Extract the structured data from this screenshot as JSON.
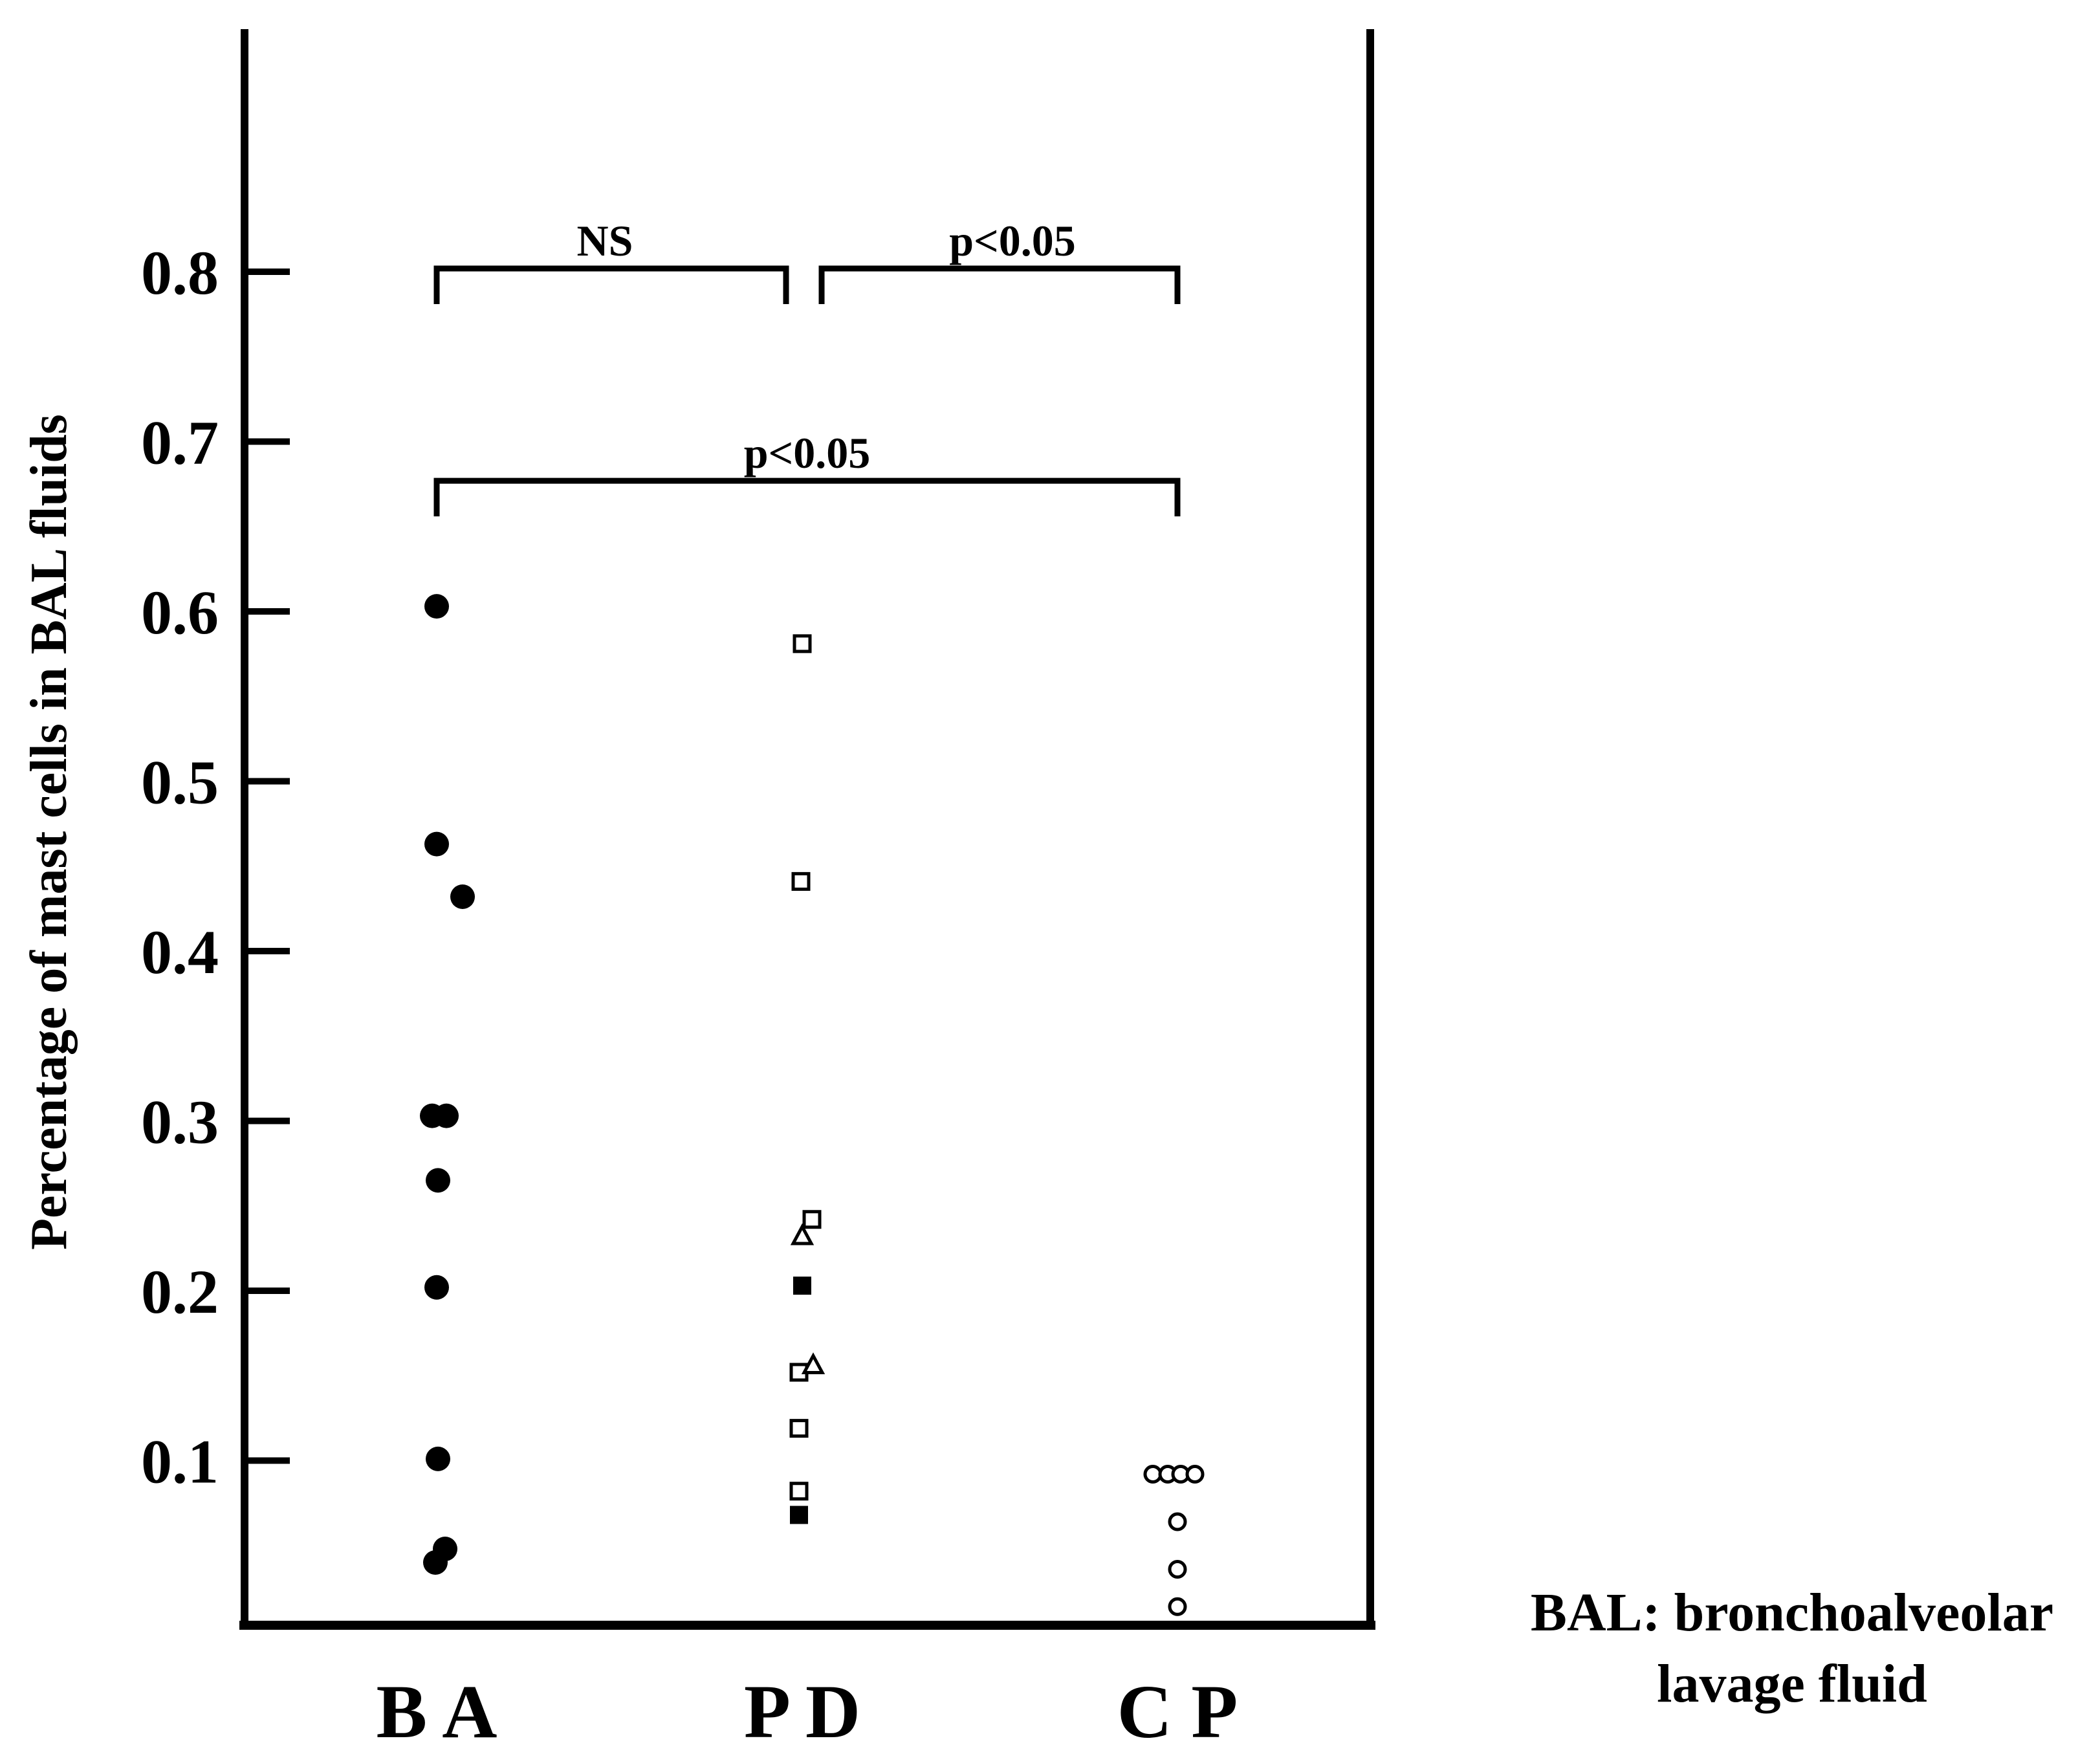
{
  "chart_data": {
    "type": "scatter",
    "ylabel": "Percentage of mast cells in BAL fluids",
    "ylim": [
      0,
      0.8
    ],
    "yticks": [
      "0.1",
      "0.2",
      "0.3",
      "0.4",
      "0.5",
      "0.6",
      "0.7",
      "0.8"
    ],
    "categories": [
      "B A",
      "P D",
      "C P"
    ],
    "series": [
      {
        "category": "B A",
        "marker": "filled-circle",
        "points": [
          {
            "offset": 0.0,
            "y": 0.603
          },
          {
            "offset": 0.0,
            "y": 0.463
          },
          {
            "offset": 0.4,
            "y": 0.432
          },
          {
            "offset": -0.07,
            "y": 0.303
          },
          {
            "offset": 0.15,
            "y": 0.303
          },
          {
            "offset": 0.02,
            "y": 0.265
          },
          {
            "offset": 0.0,
            "y": 0.202
          },
          {
            "offset": 0.02,
            "y": 0.101
          },
          {
            "offset": 0.13,
            "y": 0.048
          },
          {
            "offset": -0.02,
            "y": 0.04
          }
        ]
      },
      {
        "category": "P D",
        "marker": "open-square",
        "points": [
          {
            "offset": 0.0,
            "y": 0.581
          },
          {
            "offset": -0.02,
            "y": 0.441
          },
          {
            "offset": 0.15,
            "y": 0.242
          },
          {
            "offset": -0.05,
            "y": 0.152
          },
          {
            "offset": -0.05,
            "y": 0.119
          },
          {
            "offset": -0.05,
            "y": 0.082
          }
        ]
      },
      {
        "category": "P D",
        "marker": "open-triangle",
        "points": [
          {
            "offset": 0.0,
            "y": 0.232
          },
          {
            "offset": 0.17,
            "y": 0.156
          }
        ]
      },
      {
        "category": "P D",
        "marker": "filled-square",
        "points": [
          {
            "offset": 0.0,
            "y": 0.203
          },
          {
            "offset": -0.05,
            "y": 0.068
          }
        ]
      },
      {
        "category": "C P",
        "marker": "open-circle",
        "points": [
          {
            "offset": -0.38,
            "y": 0.092
          },
          {
            "offset": -0.15,
            "y": 0.092
          },
          {
            "offset": 0.05,
            "y": 0.092
          },
          {
            "offset": 0.27,
            "y": 0.092
          },
          {
            "offset": 0.0,
            "y": 0.064
          },
          {
            "offset": 0.0,
            "y": 0.036
          },
          {
            "offset": 0.0,
            "y": 0.014
          }
        ]
      }
    ],
    "annotations": [
      {
        "text": "NS",
        "from": "B A",
        "to": "P D",
        "y": 0.8
      },
      {
        "text": "p<0.05",
        "from": "P D",
        "to": "C P",
        "y": 0.8
      },
      {
        "text": "p<0.05",
        "from": "B A",
        "to": "C P",
        "y": 0.675
      }
    ],
    "note": [
      "BAL: bronchoalveolar",
      "lavage fluid"
    ]
  }
}
